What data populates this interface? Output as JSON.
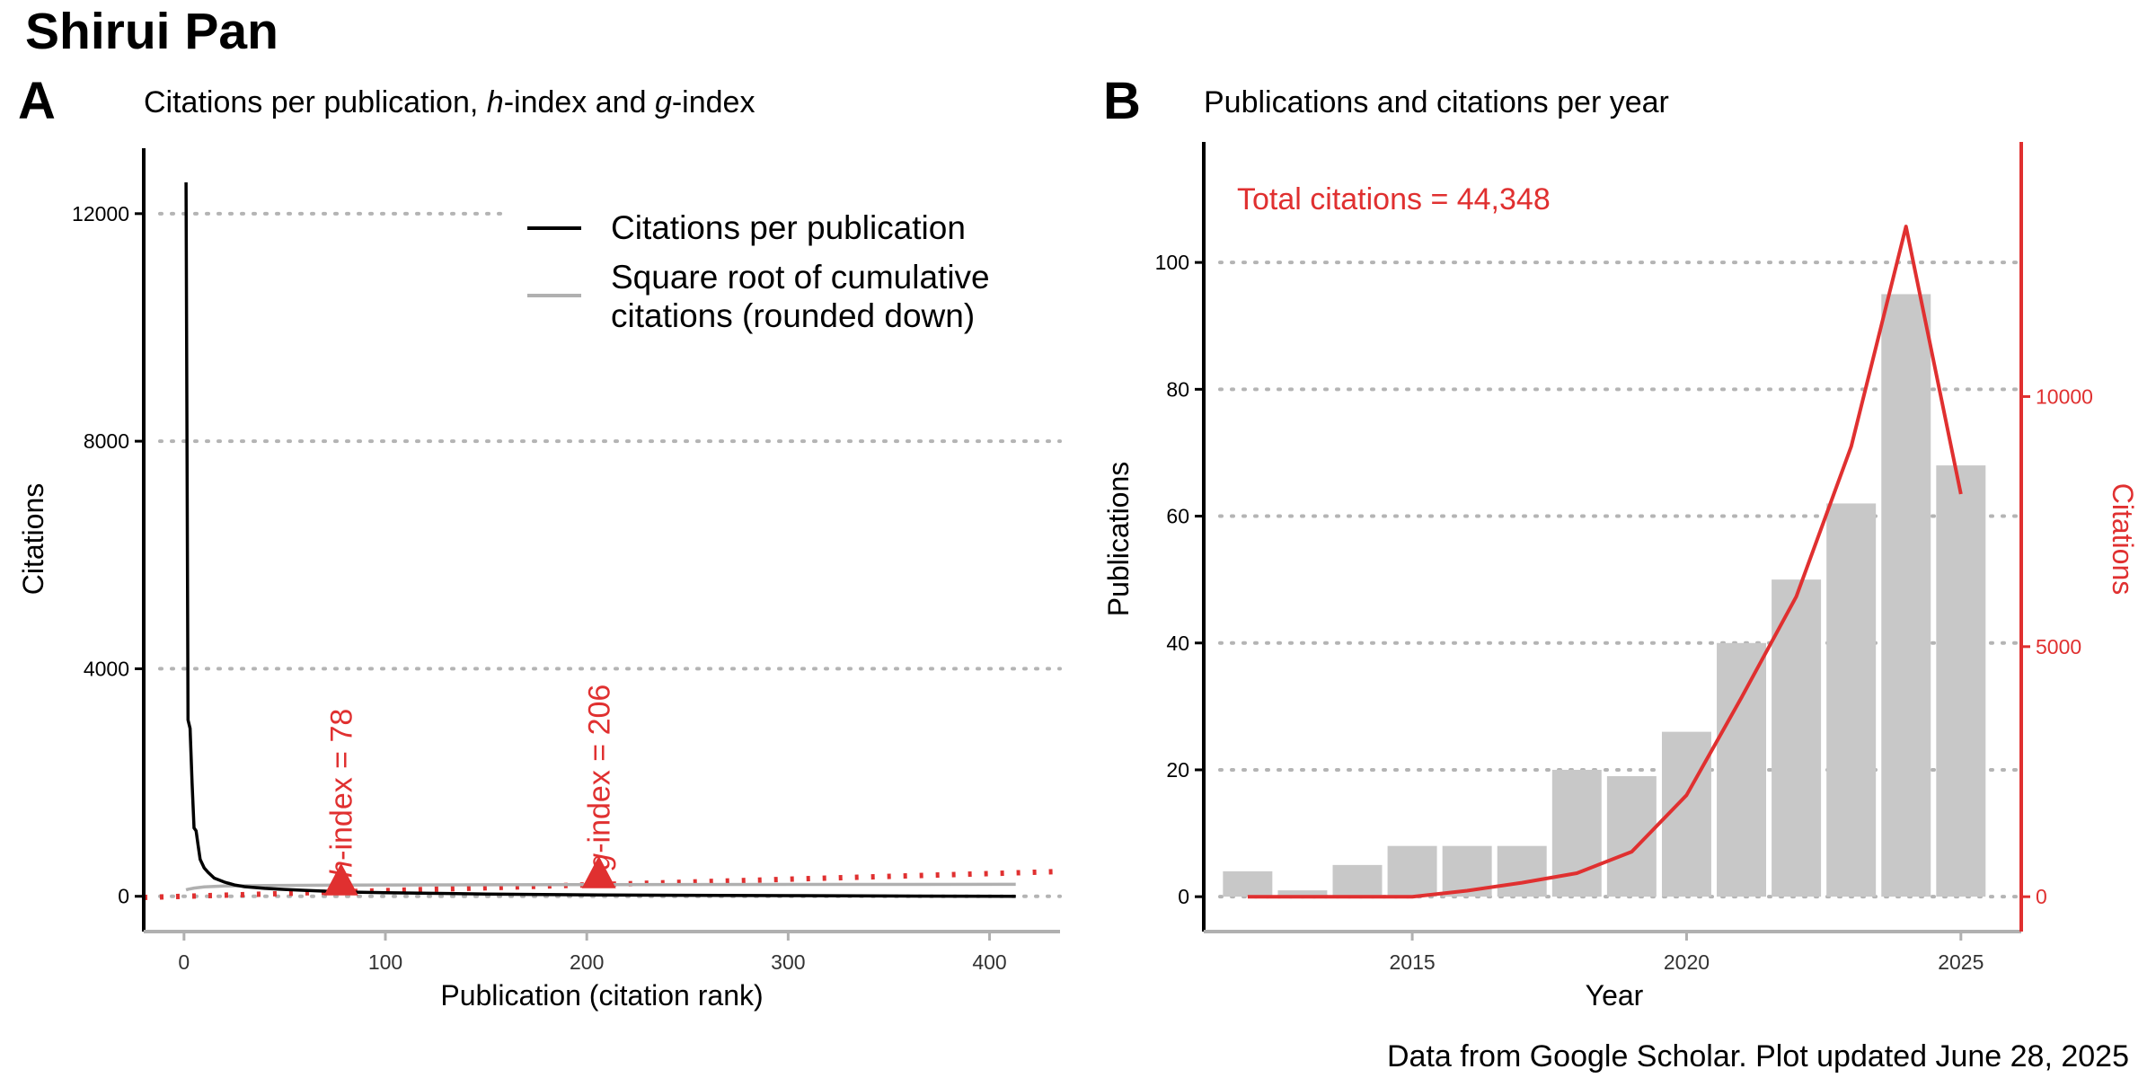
{
  "title": "Shirui Pan",
  "footer": "Data from Google Scholar. Plot updated June 28, 2025",
  "colors": {
    "red": "#e03030",
    "gray_bar": "#c8c8c8",
    "gray_line": "#b0b0b0",
    "axis": "#000000",
    "grid": "#b4b4b4"
  },
  "chart_data": [
    {
      "panel": "A",
      "type": "line",
      "title": "Citations per publication,  h-index and g-index",
      "title_parts": [
        "Citations per publication,  ",
        "h",
        "-index and ",
        "g",
        "-index"
      ],
      "xlabel": "Publication (citation rank)",
      "ylabel": "Citations",
      "xlim": [
        -20,
        435
      ],
      "ylim": [
        -620,
        13150
      ],
      "xticks": [
        0,
        100,
        200,
        300,
        400
      ],
      "yticks": [
        0,
        4000,
        8000,
        12000
      ],
      "ytick_labels": [
        "0",
        "4000",
        "8000",
        "12000"
      ],
      "grid": "horizontal dotted",
      "legend_position": "top-right",
      "legend": [
        "Citations per publication",
        "Square root of cumulative",
        "citations (rounded down)"
      ],
      "series": [
        {
          "name": "Citations per publication",
          "color": "#000000",
          "x": [
            1,
            2,
            3,
            4,
            5,
            6,
            7,
            8,
            10,
            12,
            15,
            20,
            25,
            30,
            40,
            50,
            60,
            78,
            100,
            150,
            206,
            250,
            300,
            350,
            413
          ],
          "y": [
            12550,
            3100,
            2950,
            2000,
            1200,
            1150,
            900,
            650,
            500,
            420,
            320,
            250,
            200,
            170,
            140,
            120,
            105,
            78,
            62,
            40,
            25,
            18,
            12,
            6,
            1
          ]
        },
        {
          "name": "Square root of cumulative citations (rounded down)",
          "color": "#b0b0b0",
          "x": [
            1,
            2,
            5,
            10,
            20,
            40,
            80,
            150,
            206,
            300,
            413
          ],
          "y": [
            112,
            124,
            145,
            165,
            181,
            190,
            198,
            203,
            206,
            209,
            210
          ]
        },
        {
          "name": "identity",
          "color": "#e03030",
          "style": "dotted",
          "x": [
            -20,
            435
          ],
          "y": [
            -20,
            435
          ]
        }
      ],
      "annotations": [
        {
          "label": "h-index = 78",
          "italic": "h",
          "rest": "-index = 78",
          "x": 78,
          "y": 78
        },
        {
          "label": "g-index = 206",
          "italic": "g",
          "rest": "-index = 206",
          "x": 206,
          "y": 206
        }
      ]
    },
    {
      "panel": "B",
      "type": "bar",
      "title": "Publications and citations per year",
      "xlabel": "Year",
      "ylabel": "Publications",
      "ylabel_right": "Citations",
      "annotation": "Total citations = 44,348",
      "xlim": [
        2011.2,
        2026.1
      ],
      "ylim": [
        -5.5,
        119
      ],
      "y2lim": [
        -697,
        15091
      ],
      "xticks": [
        2015,
        2020,
        2025
      ],
      "yticks": [
        0,
        20,
        40,
        60,
        80,
        100
      ],
      "y2ticks": [
        0,
        5000,
        10000
      ],
      "grid": "horizontal dotted",
      "categories": [
        2012,
        2013,
        2014,
        2015,
        2016,
        2017,
        2018,
        2019,
        2020,
        2021,
        2022,
        2023,
        2024,
        2025
      ],
      "series": [
        {
          "name": "Publications",
          "color": "#c8c8c8",
          "values": [
            4,
            1,
            5,
            8,
            8,
            8,
            20,
            19,
            26,
            40,
            50,
            62,
            95,
            68
          ]
        },
        {
          "name": "Citations",
          "color": "#e03030",
          "axis": "right",
          "values": [
            0,
            0,
            0,
            0,
            120,
            280,
            470,
            900,
            2030,
            3980,
            6000,
            9000,
            13400,
            8050
          ]
        }
      ]
    }
  ]
}
